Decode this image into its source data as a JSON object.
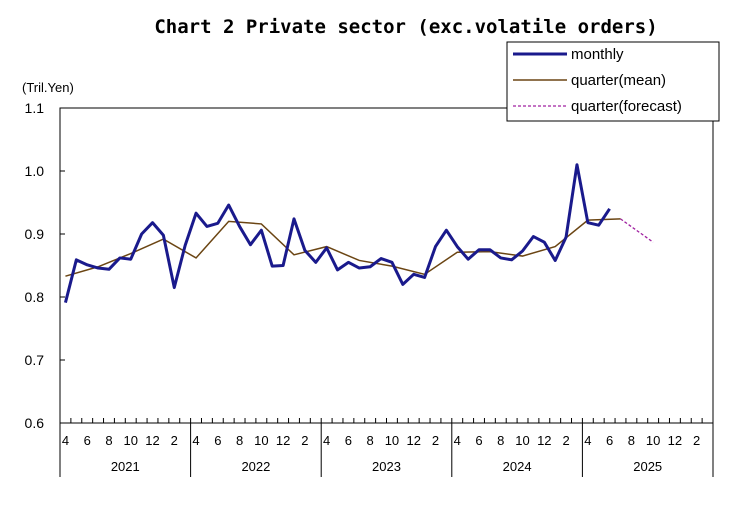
{
  "chart_data": {
    "type": "line",
    "title": "Chart 2 Private sector (exc.volatile orders)",
    "ylabel": "(Tril.Yen)",
    "ylim": [
      0.6,
      1.1
    ],
    "yticks": [
      "0.6",
      "0.7",
      "0.8",
      "0.9",
      "1.0",
      "1.1"
    ],
    "xtick_labels": [
      "4",
      "6",
      "8",
      "10",
      "12",
      "2",
      "4",
      "6",
      "8",
      "10",
      "12",
      "2",
      "4",
      "6",
      "8",
      "10",
      "12",
      "2",
      "4",
      "6",
      "8",
      "10",
      "12",
      "2",
      "4",
      "6",
      "8",
      "10",
      "12",
      "2"
    ],
    "years": [
      "2021",
      "2022",
      "2023",
      "2024",
      "2025"
    ],
    "legend_position": "top-right",
    "legend": [
      "monthly",
      "quarter(mean)",
      "quarter(forecast)"
    ],
    "colors": {
      "monthly": "#1a1a8c",
      "mean": "#6b4513",
      "forecast": "#a020a0"
    },
    "series": [
      {
        "name": "monthly",
        "values": [
          0.791,
          0.859,
          0.851,
          0.846,
          0.844,
          0.862,
          0.86,
          0.9,
          0.918,
          0.898,
          0.815,
          0.882,
          0.933,
          0.912,
          0.917,
          0.946,
          0.912,
          0.883,
          0.906,
          0.849,
          0.85,
          0.924,
          0.874,
          0.855,
          0.878,
          0.843,
          0.855,
          0.846,
          0.848,
          0.861,
          0.855,
          0.82,
          0.836,
          0.831,
          0.88,
          0.906,
          0.88,
          0.86,
          0.875,
          0.875,
          0.862,
          0.859,
          0.873,
          0.896,
          0.887,
          0.858,
          0.895,
          1.01,
          0.918,
          0.914,
          0.94
        ]
      },
      {
        "name": "quarter(mean)",
        "x_index": [
          0,
          3,
          6,
          9,
          12,
          15,
          18,
          21,
          24,
          27,
          30,
          33,
          36,
          39,
          42,
          45,
          48,
          51
        ],
        "values": [
          0.833,
          0.848,
          0.869,
          0.892,
          0.862,
          0.92,
          0.916,
          0.867,
          0.88,
          0.858,
          0.849,
          0.836,
          0.871,
          0.872,
          0.865,
          0.88,
          0.922,
          0.924
        ]
      },
      {
        "name": "quarter(forecast)",
        "x_index": [
          51,
          54
        ],
        "values": [
          0.924,
          0.887
        ]
      }
    ]
  }
}
